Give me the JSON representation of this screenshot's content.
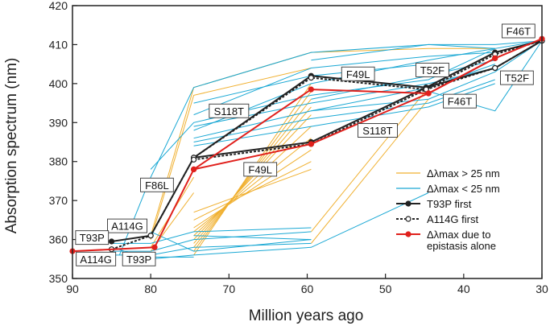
{
  "chart_data": {
    "type": "line",
    "xlabel": "Million years ago",
    "ylabel": "Absorption spectrum (nm)",
    "xlim": [
      90,
      30
    ],
    "ylim": [
      350,
      420
    ],
    "x_reversed": true,
    "grid": false,
    "x_ticks": [
      90,
      80,
      70,
      60,
      50,
      40,
      30
    ],
    "y_ticks": [
      350,
      360,
      370,
      380,
      390,
      400,
      410,
      420
    ],
    "colors": {
      "gt25": "#f0b030",
      "lt25": "#1aa8d4",
      "t93p_first": "#222222",
      "a114g_first": "#222222",
      "epistasis": "#e0201c",
      "axis": "#222222"
    },
    "legend": {
      "placement": "right",
      "entries": [
        {
          "label": "Δλmax > 25 nm",
          "key": "gt25"
        },
        {
          "label": "Δλmax < 25 nm",
          "key": "lt25"
        },
        {
          "label": "T93P first",
          "key": "t93p_first"
        },
        {
          "label": "A114G first",
          "key": "a114g_first"
        },
        {
          "label": "Δλmax due to",
          "label2": "epistasis alone",
          "key": "epistasis"
        }
      ]
    },
    "series": [
      {
        "key": "t93p_first",
        "style": "solid",
        "marker": "filled",
        "x": [
          85,
          80,
          74.5,
          59.5,
          44.8,
          36,
          30
        ],
        "y": [
          359.5,
          361,
          381,
          402,
          399,
          408,
          411
        ]
      },
      {
        "key": "t93p_first",
        "style": "solid",
        "marker": "filled",
        "x": [
          74.5,
          59.5,
          44.8,
          36,
          30
        ],
        "y": [
          381,
          385,
          399,
          404,
          411
        ]
      },
      {
        "key": "a114g_first",
        "style": "dashed",
        "marker": "open",
        "x": [
          85,
          80,
          74.5,
          59.5,
          44.8,
          36,
          30
        ],
        "y": [
          357.5,
          361,
          381,
          401.5,
          398.5,
          407.5,
          411
        ]
      },
      {
        "key": "a114g_first",
        "style": "dashed",
        "marker": "open",
        "x": [
          74.5,
          59.5,
          44.8,
          36,
          30
        ],
        "y": [
          380.5,
          384.5,
          398.5,
          404,
          411
        ]
      },
      {
        "key": "epistasis",
        "style": "solid",
        "marker": "filled",
        "x": [
          90,
          79.5,
          74.5,
          59.5,
          44.5,
          36,
          30
        ],
        "y": [
          357,
          358,
          378,
          398.5,
          397.5,
          406.5,
          411.5
        ]
      },
      {
        "key": "epistasis",
        "style": "solid",
        "marker": "filled",
        "x": [
          74.5,
          59.5,
          44.5,
          36
        ],
        "y": [
          378,
          384.5,
          397.5,
          406.5
        ]
      }
    ],
    "background_lines": {
      "gt25": [
        [
          [
            80,
            361
          ],
          [
            74.5,
            399
          ],
          [
            59.5,
            408
          ],
          [
            44.5,
            409
          ],
          [
            36,
            409
          ]
        ],
        [
          [
            80,
            360
          ],
          [
            74.5,
            397
          ],
          [
            59.5,
            404
          ]
        ],
        [
          [
            74.5,
            356
          ],
          [
            59.5,
            400
          ]
        ],
        [
          [
            74.5,
            357
          ],
          [
            59.5,
            398
          ]
        ],
        [
          [
            74.5,
            358
          ],
          [
            59.5,
            396
          ]
        ],
        [
          [
            74.5,
            359
          ],
          [
            59.5,
            394
          ]
        ],
        [
          [
            74.5,
            360
          ],
          [
            59.5,
            392
          ]
        ],
        [
          [
            74.5,
            361
          ],
          [
            59.5,
            389
          ]
        ],
        [
          [
            74.5,
            362
          ],
          [
            59.5,
            386
          ]
        ],
        [
          [
            74.5,
            363
          ],
          [
            59.5,
            383
          ]
        ],
        [
          [
            74.5,
            365
          ],
          [
            59.5,
            380
          ]
        ],
        [
          [
            74.5,
            367
          ],
          [
            59.5,
            378
          ]
        ],
        [
          [
            59.5,
            359
          ],
          [
            44.5,
            396
          ]
        ],
        [
          [
            59.5,
            362
          ],
          [
            44.5,
            399
          ]
        ],
        [
          [
            80,
            358
          ],
          [
            74.5,
            376
          ]
        ],
        [
          [
            80,
            357
          ],
          [
            74.5,
            372
          ]
        ]
      ],
      "lt25": [
        [
          [
            84,
            356
          ],
          [
            80,
            376
          ],
          [
            74.5,
            399
          ],
          [
            59.5,
            408
          ],
          [
            44.5,
            410
          ],
          [
            36,
            410
          ],
          [
            30,
            411
          ]
        ],
        [
          [
            80,
            378
          ],
          [
            74.5,
            390
          ],
          [
            59.5,
            397
          ],
          [
            44.5,
            401
          ],
          [
            36,
            409
          ],
          [
            30,
            411
          ]
        ],
        [
          [
            74.5,
            388
          ],
          [
            59.5,
            400
          ],
          [
            44.5,
            406
          ],
          [
            36,
            409
          ]
        ],
        [
          [
            74.5,
            386
          ],
          [
            59.5,
            393
          ],
          [
            44.5,
            396
          ],
          [
            36,
            403
          ],
          [
            30,
            411
          ]
        ],
        [
          [
            74.5,
            392
          ],
          [
            59.5,
            404
          ],
          [
            44.5,
            407
          ],
          [
            36,
            408
          ]
        ],
        [
          [
            74.5,
            389
          ],
          [
            59.5,
            395
          ],
          [
            44.5,
            400
          ],
          [
            36,
            404
          ]
        ],
        [
          [
            74.5,
            385
          ],
          [
            59.5,
            391
          ],
          [
            44.5,
            395
          ],
          [
            36,
            401
          ]
        ],
        [
          [
            74.5,
            384
          ],
          [
            59.5,
            389
          ],
          [
            44.5,
            394
          ],
          [
            36,
            400
          ]
        ],
        [
          [
            74.5,
            395
          ],
          [
            59.5,
            402
          ],
          [
            44.5,
            405
          ]
        ],
        [
          [
            59.5,
            406
          ],
          [
            44.5,
            410
          ],
          [
            36,
            409
          ]
        ],
        [
          [
            59.5,
            396
          ],
          [
            44.5,
            402
          ],
          [
            36,
            406
          ]
        ],
        [
          [
            59.5,
            393
          ],
          [
            44.5,
            399
          ],
          [
            36,
            405
          ]
        ],
        [
          [
            44.5,
            398
          ],
          [
            36,
            393
          ],
          [
            30,
            411
          ]
        ],
        [
          [
            85,
            358
          ],
          [
            80,
            355
          ],
          [
            74.5,
            356
          ],
          [
            59.5,
            358
          ],
          [
            44.5,
            372
          ]
        ],
        [
          [
            85,
            357
          ],
          [
            80,
            357
          ],
          [
            74.5,
            360
          ],
          [
            59.5,
            362
          ]
        ],
        [
          [
            85,
            359
          ],
          [
            80,
            359
          ],
          [
            74.5,
            362
          ],
          [
            59.5,
            363
          ]
        ],
        [
          [
            85,
            356
          ],
          [
            80,
            356
          ],
          [
            74.5,
            358
          ],
          [
            59.5,
            359
          ]
        ],
        [
          [
            80,
            362
          ],
          [
            74.5,
            357
          ],
          [
            59.5,
            360
          ]
        ],
        [
          [
            80,
            355.5
          ],
          [
            74.5,
            355.5
          ]
        ],
        [
          [
            74.5,
            361
          ],
          [
            59.5,
            360
          ]
        ]
      ]
    },
    "annotations": [
      {
        "text": "F46T",
        "x": 33,
        "y": 413.5
      },
      {
        "text": "F49L",
        "x": 53.5,
        "y": 402.5
      },
      {
        "text": "T52F",
        "x": 44,
        "y": 403.5
      },
      {
        "text": "T52F",
        "x": 33.2,
        "y": 401.5
      },
      {
        "text": "F46T",
        "x": 40.5,
        "y": 395.5
      },
      {
        "text": "S118T",
        "x": 70,
        "y": 393
      },
      {
        "text": "S118T",
        "x": 51,
        "y": 388
      },
      {
        "text": "F49L",
        "x": 66,
        "y": 378
      },
      {
        "text": "F86L",
        "x": 79.2,
        "y": 374
      },
      {
        "text": "A114G",
        "x": 83,
        "y": 363.5
      },
      {
        "text": "T93P",
        "x": 87.5,
        "y": 360.5
      },
      {
        "text": "A114G",
        "x": 87,
        "y": 355
      },
      {
        "text": "T93P",
        "x": 81.5,
        "y": 355
      }
    ]
  }
}
